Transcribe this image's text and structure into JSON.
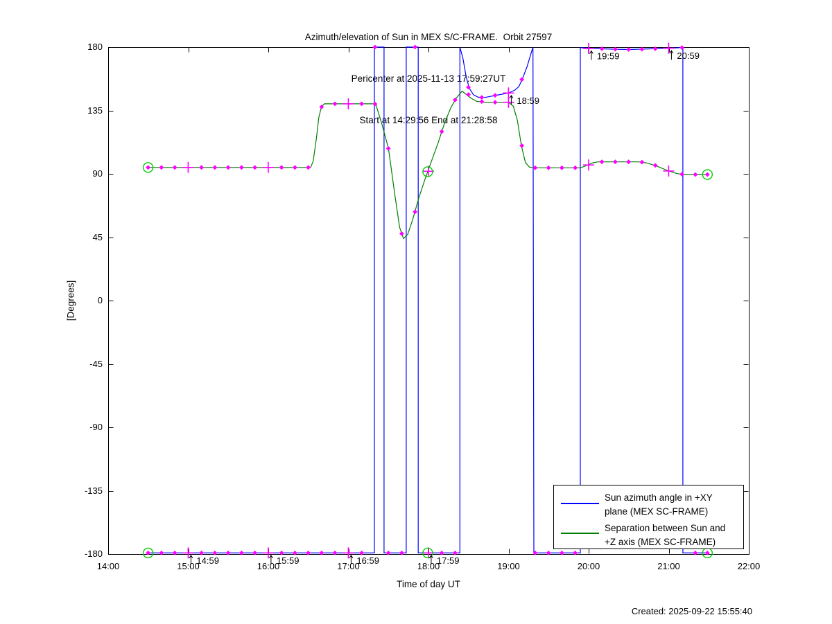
{
  "figure": {
    "created": "Created: 2025-09-22 15:55:40"
  },
  "legend": {
    "items": [
      {
        "color": "#0000ff",
        "lines": [
          "Sun azimuth angle in +XY",
          "plane (MEX SC-FRAME)"
        ]
      },
      {
        "color": "#007f00",
        "lines": [
          "Separation between Sun and",
          "+Z axis (MEX SC-FRAME)"
        ]
      }
    ]
  },
  "chart_data": {
    "type": "line",
    "title": "Azimuth/elevation of Sun in MEX S/C-FRAME.  Orbit 27597",
    "subtitle1": "Pericenter at 2025-11-13 17:59:27UT",
    "subtitle2": "Start at 14:29:56 End at 21:28:58",
    "xlabel": "Time of day UT",
    "ylabel": "[Degrees]",
    "xlim": [
      14,
      22
    ],
    "ylim": [
      -180,
      180
    ],
    "grid": false,
    "legend_position": "lower-right-inside",
    "marker_color": "#ff00ff",
    "xticks": [
      {
        "v": 14,
        "label": "14:00"
      },
      {
        "v": 15,
        "label": "15:00"
      },
      {
        "v": 16,
        "label": "16:00"
      },
      {
        "v": 17,
        "label": "17:00"
      },
      {
        "v": 18,
        "label": "18:00"
      },
      {
        "v": 19,
        "label": "19:00"
      },
      {
        "v": 20,
        "label": "20:00"
      },
      {
        "v": 21,
        "label": "21:00"
      },
      {
        "v": 22,
        "label": "22:00"
      }
    ],
    "yticks": [
      {
        "v": -180,
        "label": "-180"
      },
      {
        "v": -135,
        "label": "-135"
      },
      {
        "v": -90,
        "label": "-90"
      },
      {
        "v": -45,
        "label": "-45"
      },
      {
        "v": 0,
        "label": "0"
      },
      {
        "v": 45,
        "label": "45"
      },
      {
        "v": 90,
        "label": "90"
      },
      {
        "v": 135,
        "label": "135"
      },
      {
        "v": 180,
        "label": "180"
      }
    ],
    "series": [
      {
        "id": "azimuth",
        "name": "Sun azimuth angle in +XY plane (MEX SC-FRAME)",
        "color": "#0000ff",
        "points": [
          [
            14.4989,
            -179.2
          ],
          [
            17.325,
            -179.2
          ],
          [
            17.325,
            180
          ],
          [
            17.445,
            180
          ],
          [
            17.445,
            -179.2
          ],
          [
            17.722,
            -179.2
          ],
          [
            17.722,
            180
          ],
          [
            17.872,
            180
          ],
          [
            17.872,
            -179.2
          ],
          [
            18.392,
            -179.2
          ],
          [
            18.392,
            180
          ],
          [
            18.43,
            172
          ],
          [
            18.47,
            159
          ],
          [
            18.51,
            150.8
          ],
          [
            18.56,
            146.2
          ],
          [
            18.62,
            144.4
          ],
          [
            18.7,
            144.2
          ],
          [
            18.85,
            145.8
          ],
          [
            19.0,
            147.4
          ],
          [
            19.08,
            149.5
          ],
          [
            19.13,
            152
          ],
          [
            19.18,
            158.5
          ],
          [
            19.23,
            166
          ],
          [
            19.27,
            173.5
          ],
          [
            19.305,
            180
          ],
          [
            19.316,
            -179.2
          ],
          [
            19.896,
            -179.2
          ],
          [
            19.896,
            179.6
          ],
          [
            20.05,
            179
          ],
          [
            20.3,
            178.5
          ],
          [
            20.5,
            178.3
          ],
          [
            20.75,
            178.7
          ],
          [
            21.0,
            179.2
          ],
          [
            21.15,
            179.6
          ],
          [
            21.177,
            179.7
          ],
          [
            21.177,
            -179.2
          ],
          [
            21.4828,
            -179.2
          ]
        ],
        "markers": [
          [
            14.4989,
            -179.2
          ],
          [
            14.6656,
            -179.2
          ],
          [
            14.8322,
            -179.2
          ],
          [
            14.9989,
            -179.2,
            1
          ],
          [
            15.1656,
            -179.2
          ],
          [
            15.3322,
            -179.2
          ],
          [
            15.4989,
            -179.2
          ],
          [
            15.6656,
            -179.2
          ],
          [
            15.8322,
            -179.2
          ],
          [
            15.9989,
            -179.2,
            1
          ],
          [
            16.1656,
            -179.2
          ],
          [
            16.3322,
            -179.2
          ],
          [
            16.4989,
            -179.2
          ],
          [
            16.6656,
            -179.2
          ],
          [
            16.8322,
            -179.2
          ],
          [
            16.9989,
            -179.2,
            1
          ],
          [
            17.1656,
            -179.2
          ],
          [
            17.3322,
            180
          ],
          [
            17.4989,
            -179.2
          ],
          [
            17.6656,
            -179.2
          ],
          [
            17.8322,
            180
          ],
          [
            17.9989,
            -179.2,
            1
          ],
          [
            18.1656,
            -179.2
          ],
          [
            18.3322,
            -179.2
          ],
          [
            18.4989,
            151.5
          ],
          [
            18.6656,
            144.3
          ],
          [
            18.8322,
            145.7
          ],
          [
            18.9989,
            147.4,
            1
          ],
          [
            19.1656,
            157
          ],
          [
            19.3322,
            -179.2
          ],
          [
            19.4989,
            -179.2
          ],
          [
            19.6656,
            -179.2
          ],
          [
            19.8322,
            -179.2
          ],
          [
            19.9989,
            179,
            1
          ],
          [
            20.1656,
            178.8
          ],
          [
            20.3322,
            178.5
          ],
          [
            20.4989,
            178.3
          ],
          [
            20.6656,
            178.5
          ],
          [
            20.8322,
            178.8
          ],
          [
            20.9989,
            179.2,
            1
          ],
          [
            21.1656,
            179.6
          ],
          [
            21.3322,
            -179.2
          ],
          [
            21.4828,
            -179.2
          ]
        ]
      },
      {
        "id": "separation",
        "name": "Separation between Sun and +Z axis (MEX SC-FRAME)",
        "color": "#007f00",
        "points": [
          [
            14.4989,
            94.5
          ],
          [
            16.528,
            94.5
          ],
          [
            16.56,
            99
          ],
          [
            16.6,
            115
          ],
          [
            16.63,
            130
          ],
          [
            16.662,
            137.5
          ],
          [
            16.7,
            139.7
          ],
          [
            17.34,
            139.7
          ],
          [
            17.42,
            125
          ],
          [
            17.5,
            108
          ],
          [
            17.58,
            75
          ],
          [
            17.64,
            52
          ],
          [
            17.688,
            44
          ],
          [
            17.74,
            47
          ],
          [
            17.8,
            57
          ],
          [
            17.88,
            73
          ],
          [
            17.95,
            85
          ],
          [
            17.9908,
            91.5
          ],
          [
            18.05,
            101
          ],
          [
            18.12,
            112
          ],
          [
            18.2,
            126
          ],
          [
            18.28,
            137
          ],
          [
            18.35,
            144
          ],
          [
            18.42,
            148.7
          ],
          [
            18.48,
            146
          ],
          [
            18.53,
            143.8
          ],
          [
            18.6,
            141.5
          ],
          [
            18.7,
            140.8
          ],
          [
            19.0,
            140.8
          ],
          [
            19.06,
            138
          ],
          [
            19.11,
            128
          ],
          [
            19.16,
            110
          ],
          [
            19.21,
            98
          ],
          [
            19.26,
            94.8
          ],
          [
            19.32,
            94.3
          ],
          [
            19.9,
            94.3
          ],
          [
            19.97,
            95.8
          ],
          [
            20.05,
            97.8
          ],
          [
            20.12,
            98.5
          ],
          [
            20.62,
            98.5
          ],
          [
            20.72,
            97.8
          ],
          [
            20.85,
            95.5
          ],
          [
            21.0,
            92
          ],
          [
            21.1,
            90.2
          ],
          [
            21.18,
            89.5
          ],
          [
            21.4828,
            89.5
          ]
        ],
        "markers": [
          [
            14.4989,
            94.5
          ],
          [
            14.6656,
            94.5
          ],
          [
            14.8322,
            94.5
          ],
          [
            14.9989,
            94.5,
            1
          ],
          [
            15.1656,
            94.5
          ],
          [
            15.3322,
            94.5
          ],
          [
            15.4989,
            94.5
          ],
          [
            15.6656,
            94.5
          ],
          [
            15.8322,
            94.5
          ],
          [
            15.9989,
            94.5,
            1
          ],
          [
            16.1656,
            94.5
          ],
          [
            16.3322,
            94.5
          ],
          [
            16.4989,
            94.5
          ],
          [
            16.6656,
            137.5
          ],
          [
            16.8322,
            139.7
          ],
          [
            16.9989,
            139.7,
            1
          ],
          [
            17.1656,
            139.7
          ],
          [
            17.3322,
            139.6
          ],
          [
            17.4989,
            108
          ],
          [
            17.6656,
            47.5
          ],
          [
            17.8322,
            63
          ],
          [
            17.9989,
            91.8,
            1
          ],
          [
            18.1656,
            120
          ],
          [
            18.3322,
            142.5
          ],
          [
            18.4989,
            146.3
          ],
          [
            18.6656,
            141.3
          ],
          [
            18.8322,
            140.8
          ],
          [
            18.9989,
            140.8,
            1
          ],
          [
            19.1656,
            110
          ],
          [
            19.3322,
            94.3
          ],
          [
            19.4989,
            94.3
          ],
          [
            19.6656,
            94.3
          ],
          [
            19.8322,
            94.3
          ],
          [
            19.9989,
            96.3,
            1
          ],
          [
            20.1656,
            98.5
          ],
          [
            20.3322,
            98.5
          ],
          [
            20.4989,
            98.5
          ],
          [
            20.6656,
            98.3
          ],
          [
            20.8322,
            96
          ],
          [
            20.9989,
            92,
            1
          ],
          [
            21.1656,
            89.7
          ],
          [
            21.3322,
            89.5
          ],
          [
            21.4828,
            89.5
          ]
        ]
      }
    ],
    "event_circles": {
      "color": "#00cc00",
      "points": [
        [
          14.4989,
          -179.2
        ],
        [
          14.4989,
          94.5
        ],
        [
          17.9908,
          -179.2
        ],
        [
          17.9908,
          91.5
        ],
        [
          21.4828,
          -179.2
        ],
        [
          21.4828,
          89.5
        ]
      ]
    },
    "annotations": [
      {
        "label": "14:59",
        "t": 14.9989,
        "v": -179.2
      },
      {
        "label": "15:59",
        "t": 15.9989,
        "v": -179.2
      },
      {
        "label": "16:59",
        "t": 16.9989,
        "v": -179.2
      },
      {
        "label": "17:59",
        "t": 17.9989,
        "v": -179.2
      },
      {
        "label": "18:59",
        "t": 18.9989,
        "v": 147.4
      },
      {
        "label": "19:59",
        "t": 19.9989,
        "v": 179.0
      },
      {
        "label": "20:59",
        "t": 20.9989,
        "v": 179.2
      }
    ]
  }
}
